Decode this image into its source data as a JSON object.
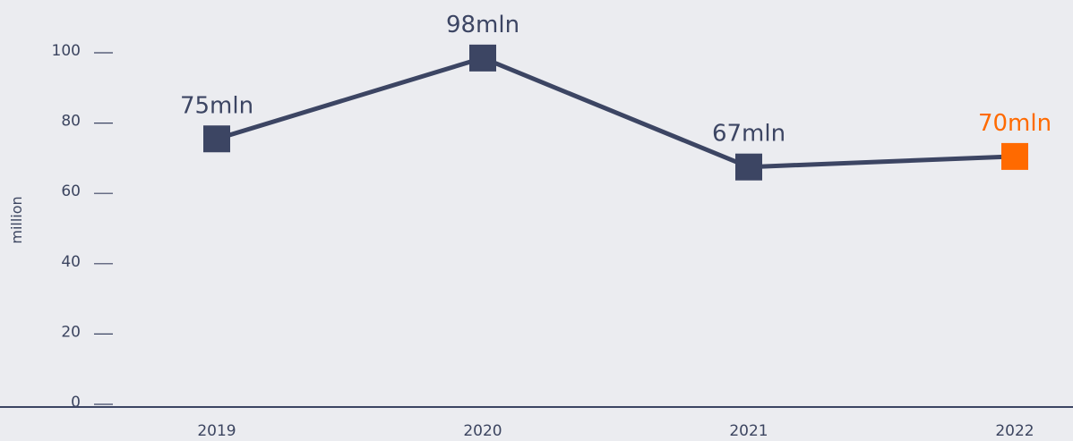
{
  "chart_data": {
    "type": "line",
    "categories": [
      "2019",
      "2020",
      "2021",
      "2022"
    ],
    "values": [
      75,
      98,
      67,
      70
    ],
    "data_labels": [
      "75mln",
      "98mln",
      "67mln",
      "70mln"
    ],
    "ylabel": "million",
    "xlabel": "",
    "ylim": [
      0,
      100
    ],
    "y_ticks": [
      "0",
      "20",
      "40",
      "60",
      "80",
      "100"
    ],
    "grid": false,
    "colors": {
      "series": "#3c4563",
      "highlight": "#ff6a00",
      "axis": "#3c4563",
      "background": "#ebecf0"
    },
    "highlight_index": 3
  }
}
